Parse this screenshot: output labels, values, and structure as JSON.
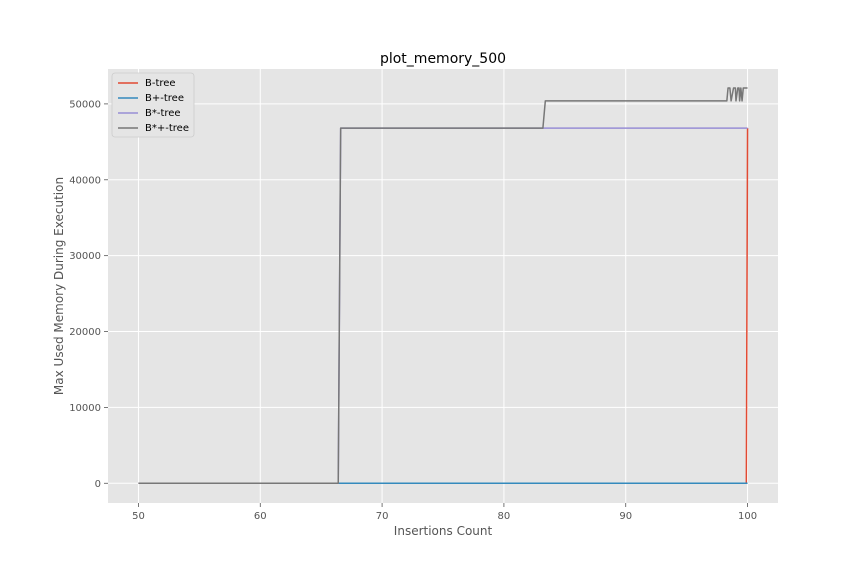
{
  "chart_data": {
    "type": "line",
    "title": "plot_memory_500",
    "xlabel": "Insertions Count",
    "ylabel": "Max Used Memory During Execution",
    "xlim": [
      47.5,
      102.5
    ],
    "ylim": [
      -2600,
      54600
    ],
    "xticks": [
      50,
      60,
      70,
      80,
      90,
      100
    ],
    "yticks": [
      0,
      10000,
      20000,
      30000,
      40000,
      50000
    ],
    "xtick_labels": [
      "50",
      "60",
      "70",
      "80",
      "90",
      "100"
    ],
    "ytick_labels": [
      "0",
      "10000",
      "20000",
      "30000",
      "40000",
      "50000"
    ],
    "grid": true,
    "legend_position": "upper-left",
    "series": [
      {
        "name": "B-tree",
        "color": "#E24A33",
        "points": [
          [
            50,
            0
          ],
          [
            99.9,
            0
          ],
          [
            100,
            46800
          ]
        ]
      },
      {
        "name": "B+-tree",
        "color": "#348ABD",
        "points": [
          [
            50,
            0
          ],
          [
            100,
            0
          ]
        ]
      },
      {
        "name": "B*-tree",
        "color": "#988ED5",
        "points": [
          [
            50,
            0
          ],
          [
            66.4,
            0
          ],
          [
            66.6,
            46800
          ],
          [
            100,
            46800
          ]
        ]
      },
      {
        "name": "B*+-tree",
        "color": "#777777",
        "points": [
          [
            50,
            0
          ],
          [
            66.4,
            0
          ],
          [
            66.6,
            46800
          ],
          [
            83.2,
            46800
          ],
          [
            83.4,
            50400
          ],
          [
            98.3,
            50400
          ],
          [
            98.4,
            52100
          ],
          [
            98.55,
            52100
          ],
          [
            98.65,
            50400
          ],
          [
            98.85,
            52100
          ],
          [
            99.0,
            52100
          ],
          [
            99.05,
            50400
          ],
          [
            99.2,
            52100
          ],
          [
            99.3,
            52100
          ],
          [
            99.35,
            50400
          ],
          [
            99.45,
            52100
          ],
          [
            99.55,
            50400
          ],
          [
            99.65,
            52100
          ],
          [
            100,
            52100
          ]
        ]
      }
    ]
  }
}
